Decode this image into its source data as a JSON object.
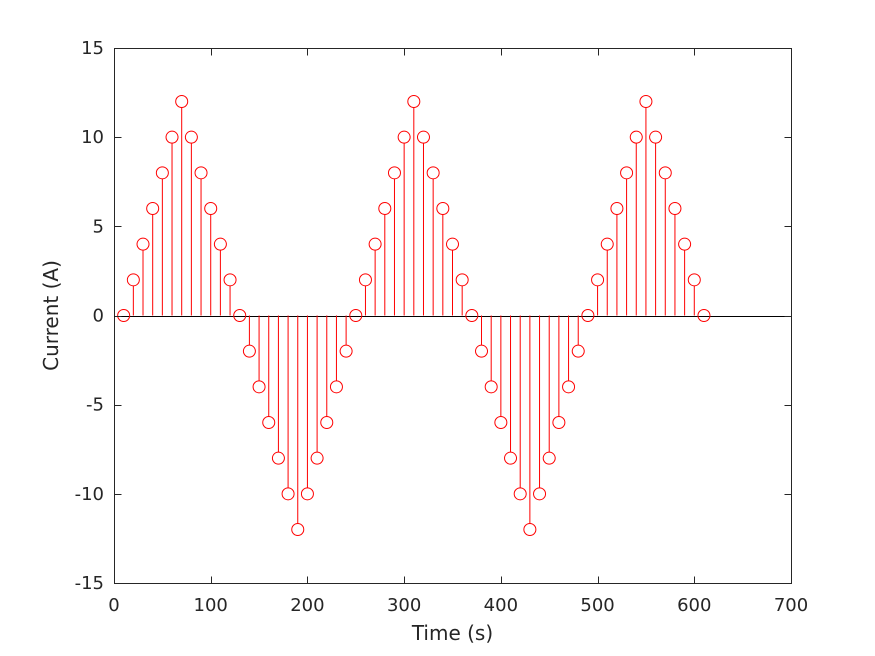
{
  "chart_data": {
    "type": "stem",
    "title": "",
    "xlabel": "Time (s)",
    "ylabel": "Current (A)",
    "xlim": [
      0,
      700
    ],
    "ylim": [
      -15,
      15
    ],
    "xticks": [
      0,
      100,
      200,
      300,
      400,
      500,
      600,
      700
    ],
    "yticks": [
      -15,
      -10,
      -5,
      0,
      5,
      10,
      15
    ],
    "grid": false,
    "baseline": 0,
    "marker": "open-circle",
    "color": "#ff0000",
    "axis_color": "#262626",
    "series": [
      {
        "x": [
          10,
          20,
          30,
          40,
          50,
          60,
          70,
          80,
          90,
          100,
          110,
          120,
          130,
          140,
          150,
          160,
          170,
          180,
          190,
          200,
          210,
          220,
          230,
          240,
          250,
          260,
          270,
          280,
          290,
          300,
          310,
          320,
          330,
          340,
          350,
          360,
          370,
          380,
          390,
          400,
          410,
          420,
          430,
          440,
          450,
          460,
          470,
          480,
          490,
          500,
          510,
          520,
          530,
          540,
          550,
          560,
          570,
          580,
          590,
          600,
          610
        ],
        "values": [
          0,
          2,
          4,
          6,
          8,
          10,
          12,
          10,
          8,
          6,
          4,
          2,
          0,
          -2,
          -4,
          -6,
          -8,
          -10,
          -12,
          -10,
          -8,
          -6,
          -4,
          -2,
          0,
          2,
          4,
          6,
          8,
          10,
          12,
          10,
          8,
          6,
          4,
          2,
          0,
          -2,
          -4,
          -6,
          -8,
          -10,
          -12,
          -10,
          -8,
          -6,
          -4,
          -2,
          0,
          2,
          4,
          6,
          8,
          10,
          12,
          10,
          8,
          6,
          4,
          2,
          0
        ]
      }
    ]
  }
}
